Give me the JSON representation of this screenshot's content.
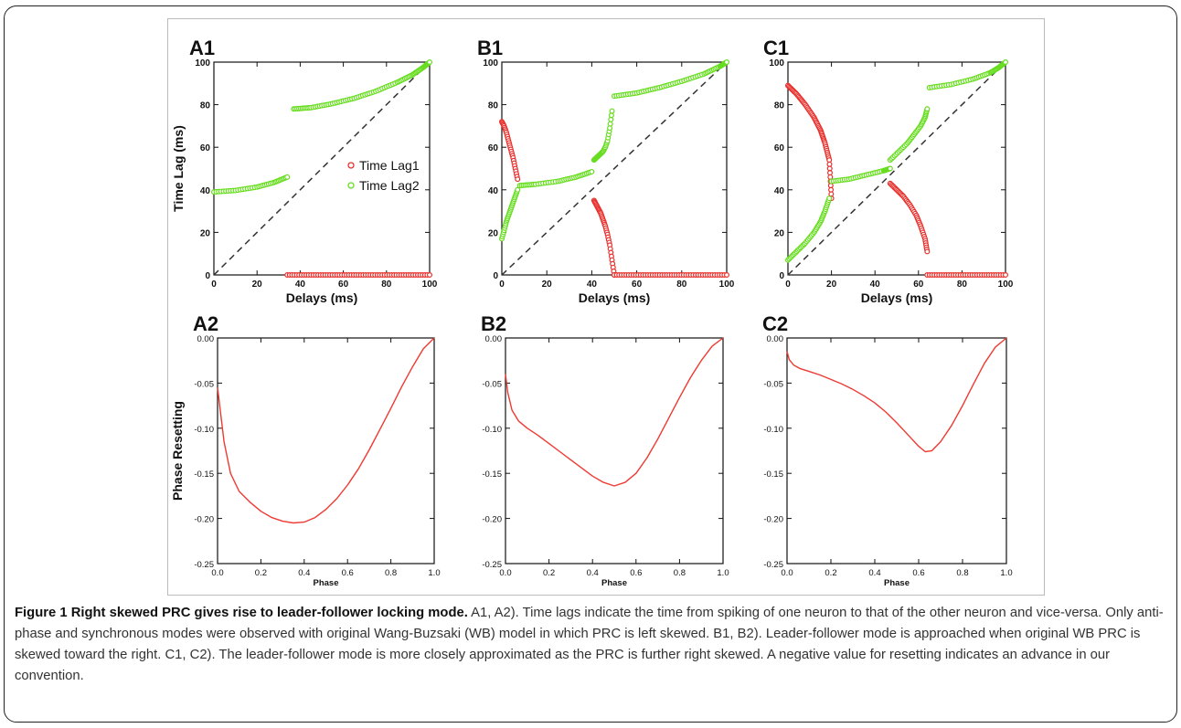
{
  "caption": {
    "label": "Figure 1",
    "title": "Right skewed PRC gives rise to leader-follower locking mode.",
    "text": "A1, A2). Time lags indicate the time from spiking of one neuron to that of the other neuron and vice-versa. Only anti-phase and synchronous modes were observed with original Wang-Buzsaki (WB) model in which PRC is left skewed. B1, B2). Leader-follower mode is approached when original WB PRC is skewed toward the right. C1, C2). The leader-follower mode is more closely approximated as the PRC is further right skewed. A negative value for resetting indicates an advance in our convention."
  },
  "colors": {
    "lag1": "#e8302c",
    "lag2": "#66dd1e",
    "prc": "#ee3a32",
    "diag": "#333333"
  },
  "chart_data": [
    {
      "panel": "A1",
      "type": "scatter",
      "xlabel": "Delays (ms)",
      "ylabel": "Time Lag (ms)",
      "xlim": [
        0,
        100
      ],
      "ylim": [
        0,
        100
      ],
      "xticks": [
        "0",
        "20",
        "40",
        "60",
        "80",
        "100"
      ],
      "yticks": [
        "0",
        "20",
        "40",
        "60",
        "80",
        "100"
      ],
      "legend": [
        "Time Lag1",
        "Time Lag2"
      ],
      "diagonal": true,
      "series": [
        {
          "name": "Time Lag1",
          "segments": [
            {
              "x": [
                34,
                100
              ],
              "y": [
                0,
                0
              ]
            }
          ]
        },
        {
          "name": "Time Lag2",
          "segments": [
            {
              "x": [
                0,
                10,
                20,
                28,
                34
              ],
              "y": [
                39,
                39.7,
                41.3,
                43.5,
                46
              ]
            },
            {
              "x": [
                37,
                45,
                55,
                65,
                75,
                85,
                92,
                97,
                100
              ],
              "y": [
                78,
                78.6,
                80.5,
                83,
                86.3,
                90.5,
                94,
                97.5,
                100
              ]
            }
          ]
        }
      ]
    },
    {
      "panel": "B1",
      "type": "scatter",
      "xlabel": "Delays (ms)",
      "ylabel": "",
      "xlim": [
        0,
        100
      ],
      "ylim": [
        0,
        100
      ],
      "xticks": [
        "0",
        "20",
        "40",
        "60",
        "80",
        "100"
      ],
      "yticks": [
        "0",
        "20",
        "40",
        "60",
        "80",
        "100"
      ],
      "legend": [],
      "diagonal": true,
      "series": [
        {
          "name": "Time Lag1",
          "segments": [
            {
              "x": [
                0,
                1,
                2,
                3,
                4,
                5,
                6,
                7
              ],
              "y": [
                72,
                70,
                67,
                63,
                59,
                55,
                50,
                45
              ]
            },
            {
              "x": [
                41,
                42,
                43,
                44,
                45,
                46,
                47,
                48,
                49,
                50
              ],
              "y": [
                35,
                33,
                31,
                29,
                26,
                23,
                19,
                14,
                7,
                0
              ]
            },
            {
              "x": [
                50,
                100
              ],
              "y": [
                0,
                0
              ]
            }
          ]
        },
        {
          "name": "Time Lag2",
          "segments": [
            {
              "x": [
                0,
                1,
                2,
                3,
                4,
                5,
                6,
                7
              ],
              "y": [
                17,
                21,
                25,
                28,
                31,
                34,
                37,
                40
              ]
            },
            {
              "x": [
                8,
                15,
                25,
                33,
                40
              ],
              "y": [
                42,
                42.6,
                44,
                46,
                48.5
              ]
            },
            {
              "x": [
                41,
                42,
                43,
                44,
                45,
                46,
                47,
                48,
                49
              ],
              "y": [
                54,
                55,
                56,
                57,
                58,
                60,
                63,
                69,
                77
              ]
            },
            {
              "x": [
                50,
                60,
                70,
                80,
                90,
                97,
                100
              ],
              "y": [
                84,
                85.5,
                88,
                91,
                94.5,
                98,
                100
              ]
            }
          ]
        }
      ]
    },
    {
      "panel": "C1",
      "type": "scatter",
      "xlabel": "Delays (ms)",
      "ylabel": "",
      "xlim": [
        0,
        100
      ],
      "ylim": [
        0,
        100
      ],
      "xticks": [
        "0",
        "20",
        "40",
        "60",
        "80",
        "100"
      ],
      "yticks": [
        "0",
        "20",
        "40",
        "60",
        "80",
        "100"
      ],
      "legend": [],
      "diagonal": true,
      "series": [
        {
          "name": "Time Lag1",
          "segments": [
            {
              "x": [
                0,
                4,
                8,
                12,
                15,
                17,
                19,
                20
              ],
              "y": [
                89,
                85,
                80,
                74,
                68,
                62,
                54,
                36
              ]
            },
            {
              "x": [
                47,
                50,
                53,
                56,
                59,
                61,
                63,
                64
              ],
              "y": [
                43,
                40,
                37,
                33,
                28,
                23,
                17,
                11
              ]
            },
            {
              "x": [
                64,
                100
              ],
              "y": [
                0,
                0
              ]
            }
          ]
        },
        {
          "name": "Time Lag2",
          "segments": [
            {
              "x": [
                0,
                4,
                8,
                12,
                15,
                17,
                19
              ],
              "y": [
                7,
                11,
                15,
                20,
                25,
                30,
                36
              ]
            },
            {
              "x": [
                20,
                28,
                36,
                44,
                47
              ],
              "y": [
                44,
                45,
                47,
                49,
                50
              ]
            },
            {
              "x": [
                47,
                51,
                55,
                58,
                61,
                63,
                64
              ],
              "y": [
                54,
                58,
                62,
                66,
                70,
                74,
                78
              ]
            },
            {
              "x": [
                65,
                75,
                85,
                93,
                97,
                100
              ],
              "y": [
                88,
                89.5,
                92,
                95,
                97.5,
                100
              ]
            }
          ]
        }
      ]
    },
    {
      "panel": "A2",
      "type": "line",
      "xlabel": "Phase",
      "ylabel": "Phase Resetting",
      "xlim": [
        0,
        1
      ],
      "ylim": [
        -0.25,
        0
      ],
      "xticks": [
        "0.0",
        "0.2",
        "0.4",
        "0.6",
        "0.8",
        "1.0"
      ],
      "yticks": [
        "0.00",
        "-0.05",
        "-0.10",
        "-0.15",
        "-0.20",
        "-0.25"
      ],
      "series": [
        {
          "name": "",
          "x": [
            0,
            0.03,
            0.06,
            0.1,
            0.15,
            0.2,
            0.25,
            0.3,
            0.35,
            0.4,
            0.45,
            0.5,
            0.55,
            0.6,
            0.65,
            0.7,
            0.75,
            0.8,
            0.85,
            0.9,
            0.95,
            1.0
          ],
          "y": [
            -0.055,
            -0.115,
            -0.15,
            -0.17,
            -0.182,
            -0.192,
            -0.199,
            -0.203,
            -0.205,
            -0.204,
            -0.199,
            -0.19,
            -0.178,
            -0.163,
            -0.145,
            -0.124,
            -0.101,
            -0.078,
            -0.054,
            -0.032,
            -0.012,
            0.0
          ]
        }
      ]
    },
    {
      "panel": "B2",
      "type": "line",
      "xlabel": "Phase",
      "ylabel": "",
      "xlim": [
        0,
        1
      ],
      "ylim": [
        -0.25,
        0
      ],
      "xticks": [
        "0.0",
        "0.2",
        "0.4",
        "0.6",
        "0.8",
        "1.0"
      ],
      "yticks": [
        "0.00",
        "-0.05",
        "-0.10",
        "-0.15",
        "-0.20",
        "-0.25"
      ],
      "series": [
        {
          "name": "",
          "x": [
            0,
            0.01,
            0.03,
            0.06,
            0.1,
            0.15,
            0.2,
            0.25,
            0.3,
            0.35,
            0.4,
            0.45,
            0.5,
            0.55,
            0.6,
            0.65,
            0.7,
            0.75,
            0.8,
            0.85,
            0.9,
            0.95,
            1.0
          ],
          "y": [
            -0.04,
            -0.06,
            -0.08,
            -0.092,
            -0.1,
            -0.108,
            -0.117,
            -0.126,
            -0.135,
            -0.144,
            -0.153,
            -0.16,
            -0.164,
            -0.16,
            -0.15,
            -0.133,
            -0.112,
            -0.089,
            -0.066,
            -0.044,
            -0.025,
            -0.009,
            0.0
          ]
        }
      ]
    },
    {
      "panel": "C2",
      "type": "line",
      "xlabel": "Phase",
      "ylabel": "",
      "xlim": [
        0,
        1
      ],
      "ylim": [
        -0.25,
        0
      ],
      "xticks": [
        "0.0",
        "0.2",
        "0.4",
        "0.6",
        "0.8",
        "1.0"
      ],
      "yticks": [
        "0.00",
        "-0.05",
        "-0.10",
        "-0.15",
        "-0.20",
        "-0.25"
      ],
      "series": [
        {
          "name": "",
          "x": [
            0,
            0.01,
            0.03,
            0.06,
            0.1,
            0.15,
            0.2,
            0.25,
            0.3,
            0.35,
            0.4,
            0.45,
            0.5,
            0.55,
            0.6,
            0.63,
            0.66,
            0.7,
            0.75,
            0.8,
            0.85,
            0.9,
            0.95,
            1.0
          ],
          "y": [
            -0.015,
            -0.024,
            -0.03,
            -0.034,
            -0.037,
            -0.041,
            -0.046,
            -0.051,
            -0.057,
            -0.064,
            -0.072,
            -0.082,
            -0.094,
            -0.107,
            -0.12,
            -0.126,
            -0.125,
            -0.115,
            -0.097,
            -0.075,
            -0.051,
            -0.028,
            -0.01,
            0.0
          ]
        }
      ]
    }
  ]
}
